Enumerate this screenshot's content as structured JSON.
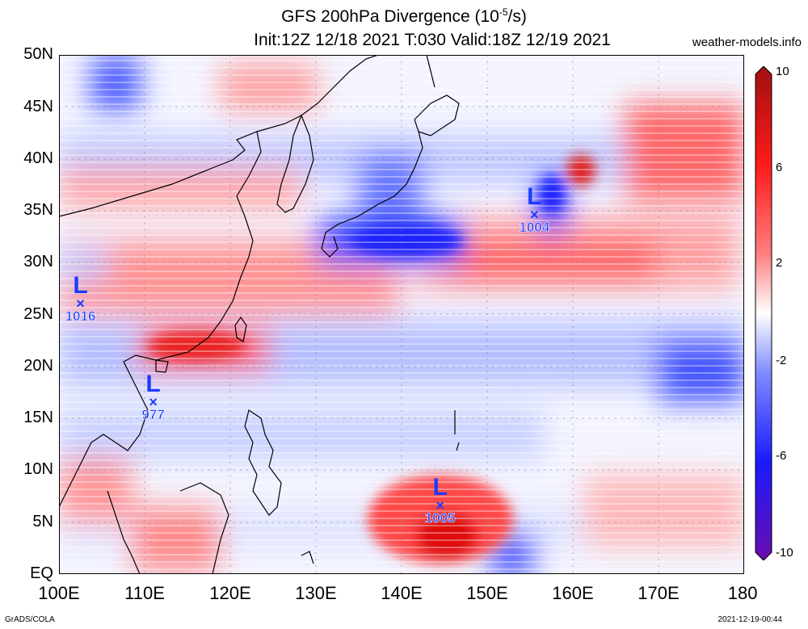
{
  "title_line1": "GFS 200hPa Divergence (10",
  "title_line1_exp": "-5",
  "title_line1_end": "/s)",
  "title_line2": "Init:12Z 12/18 2021 T:030 Valid:18Z 12/19 2021",
  "site": "weather-models.info",
  "footer_left": "GrADS/COLA",
  "footer_right": "2021-12-19-00:44",
  "lat_labels": [
    "50N",
    "45N",
    "40N",
    "35N",
    "30N",
    "25N",
    "20N",
    "15N",
    "10N",
    "5N",
    "EQ"
  ],
  "lon_labels": [
    "100E",
    "110E",
    "120E",
    "130E",
    "140E",
    "150E",
    "160E",
    "170E",
    "180"
  ],
  "colorbar_labels": [
    "10",
    "6",
    "2",
    "-2",
    "-6",
    "-10"
  ],
  "colorbar_colors": [
    "#6a0dad",
    "#1a1aff",
    "#7f8cff",
    "#ffffff",
    "#ff7f7f",
    "#ff1a1a",
    "#a01010"
  ],
  "lows": [
    {
      "label": "L",
      "pressure": "1016",
      "lon": 102.5,
      "lat": 26
    },
    {
      "label": "L",
      "pressure": "977",
      "lon": 111,
      "lat": 16.5
    },
    {
      "label": "L",
      "pressure": "1004",
      "lon": 155.5,
      "lat": 34.5
    },
    {
      "label": "L",
      "pressure": "1005",
      "lon": 144.5,
      "lat": 6.5
    }
  ]
}
